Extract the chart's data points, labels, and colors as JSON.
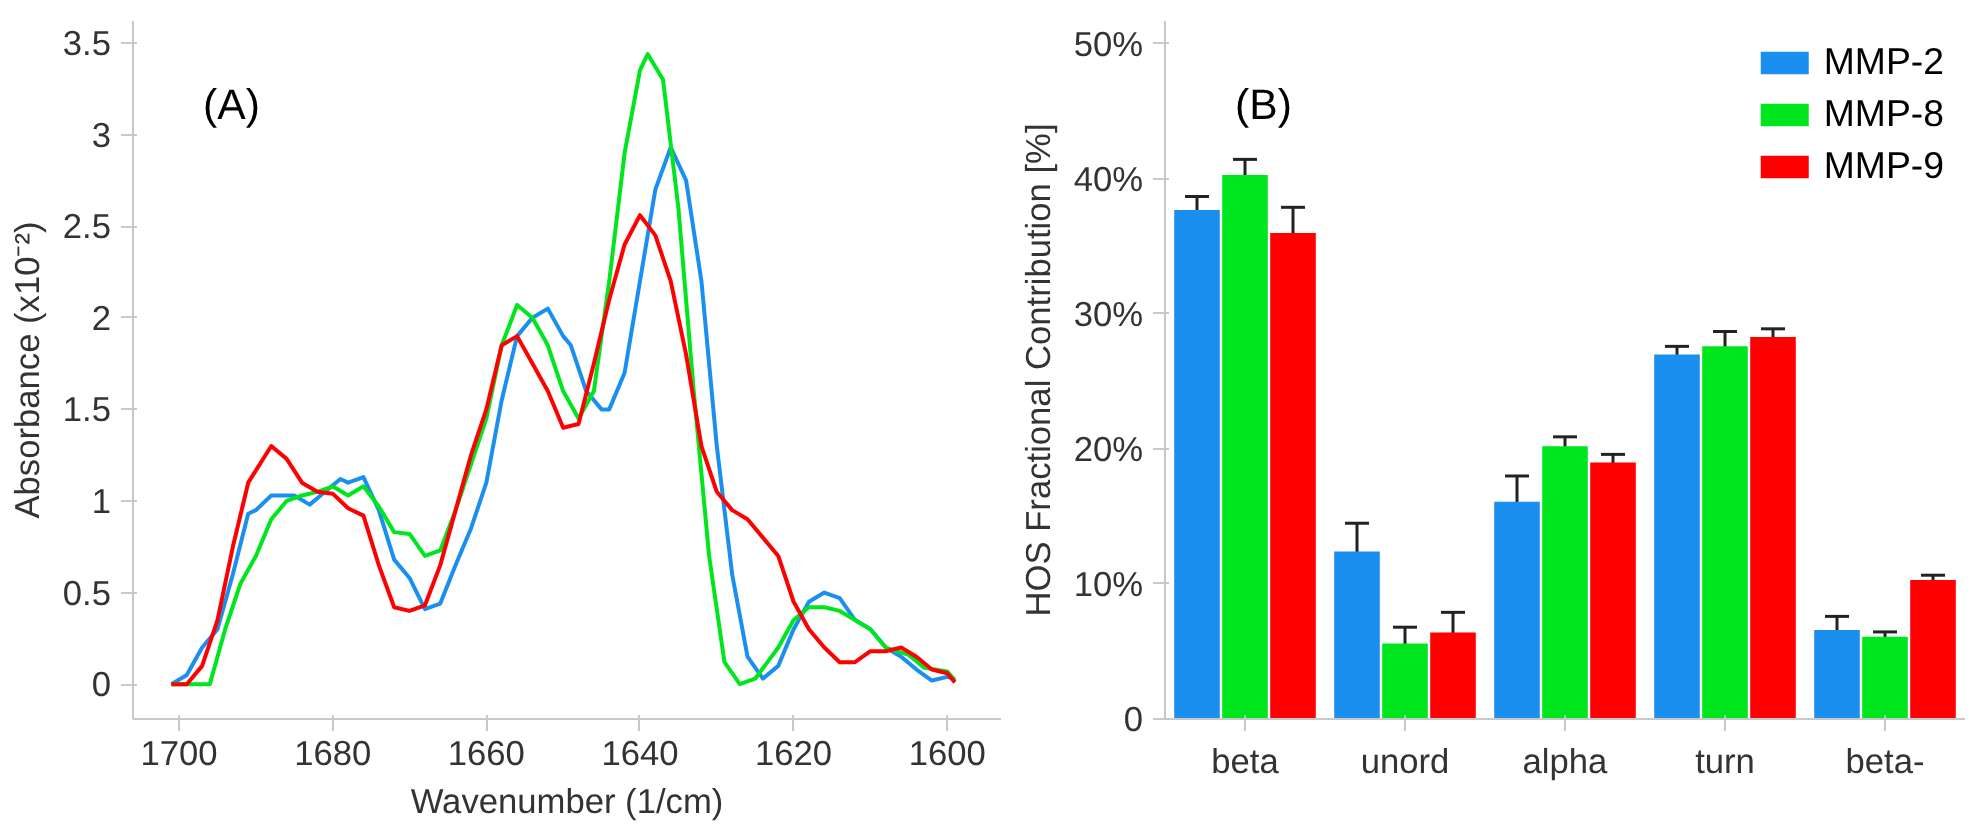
{
  "chart_data": [
    {
      "type": "line",
      "title": "(A)",
      "xlabel": "Wavenumber (1/cm)",
      "ylabel": "Absorbance (x10⁻²)",
      "xlim": [
        1706,
        1593
      ],
      "ylim": [
        -0.19,
        3.62
      ],
      "xticks": [
        1700,
        1680,
        1660,
        1640,
        1620,
        1600
      ],
      "yticks": [
        0,
        0.5,
        1,
        1.5,
        2,
        2.5,
        3,
        3.5
      ],
      "grid": false,
      "legend": false,
      "line_style": "solid",
      "series": [
        {
          "color": "#1b8fef",
          "x": [
            1701,
            1699,
            1697,
            1695,
            1693,
            1691,
            1690,
            1688,
            1685,
            1683,
            1681,
            1679,
            1678,
            1676,
            1674,
            1672,
            1670,
            1668,
            1666,
            1664,
            1662,
            1660,
            1658,
            1656,
            1654,
            1652,
            1650,
            1649,
            1647,
            1645,
            1644,
            1642,
            1640,
            1638,
            1636,
            1634,
            1632,
            1630,
            1628,
            1626,
            1624,
            1622,
            1620,
            1618,
            1616,
            1614,
            1612,
            1610,
            1608,
            1606,
            1604,
            1602,
            1600,
            1599
          ],
          "values": [
            0,
            0.05,
            0.2,
            0.3,
            0.6,
            0.93,
            0.95,
            1.03,
            1.03,
            0.98,
            1.05,
            1.12,
            1.1,
            1.13,
            0.95,
            0.68,
            0.58,
            0.41,
            0.44,
            0.65,
            0.85,
            1.1,
            1.55,
            1.9,
            2.0,
            2.05,
            1.9,
            1.85,
            1.6,
            1.5,
            1.5,
            1.7,
            2.2,
            2.7,
            2.93,
            2.75,
            2.2,
            1.3,
            0.6,
            0.15,
            0.03,
            0.1,
            0.3,
            0.45,
            0.5,
            0.47,
            0.35,
            0.3,
            0.2,
            0.15,
            0.08,
            0.02,
            0.04,
            0.03
          ]
        },
        {
          "color": "#00e61e",
          "x": [
            1701,
            1696,
            1694,
            1692,
            1690,
            1688,
            1686,
            1684,
            1682,
            1680,
            1678,
            1676,
            1674,
            1672,
            1670,
            1668,
            1666,
            1664,
            1662,
            1660,
            1658,
            1656,
            1654,
            1652,
            1650,
            1648,
            1646,
            1644,
            1642,
            1640,
            1639,
            1637,
            1635,
            1633,
            1631,
            1629,
            1627,
            1625,
            1622,
            1620,
            1618,
            1616,
            1614,
            1612,
            1610,
            1608,
            1605,
            1603,
            1600,
            1599
          ],
          "values": [
            0,
            0,
            0.3,
            0.55,
            0.7,
            0.9,
            1.0,
            1.03,
            1.05,
            1.08,
            1.03,
            1.08,
            0.97,
            0.83,
            0.82,
            0.7,
            0.73,
            0.95,
            1.2,
            1.45,
            1.85,
            2.07,
            2.0,
            1.85,
            1.6,
            1.45,
            1.6,
            2.2,
            2.9,
            3.35,
            3.44,
            3.3,
            2.6,
            1.6,
            0.7,
            0.12,
            0,
            0.03,
            0.2,
            0.35,
            0.42,
            0.42,
            0.4,
            0.35,
            0.3,
            0.2,
            0.16,
            0.09,
            0.07,
            0.02
          ]
        },
        {
          "color": "#ff0000",
          "x": [
            1701,
            1699,
            1697,
            1695,
            1693,
            1691,
            1688,
            1686,
            1684,
            1682,
            1680,
            1678,
            1676,
            1674,
            1672,
            1670,
            1668,
            1666,
            1664,
            1662,
            1660,
            1658,
            1656,
            1654,
            1652,
            1650,
            1648,
            1646,
            1644,
            1642,
            1640,
            1638,
            1636,
            1634,
            1632,
            1630,
            1628,
            1626,
            1624,
            1622,
            1620,
            1618,
            1616,
            1614,
            1612,
            1610,
            1608,
            1606,
            1604,
            1602,
            1600,
            1599
          ],
          "values": [
            0,
            0,
            0.1,
            0.35,
            0.75,
            1.1,
            1.3,
            1.23,
            1.1,
            1.05,
            1.04,
            0.96,
            0.92,
            0.65,
            0.42,
            0.4,
            0.43,
            0.65,
            0.95,
            1.25,
            1.5,
            1.85,
            1.9,
            1.75,
            1.6,
            1.4,
            1.42,
            1.75,
            2.1,
            2.4,
            2.56,
            2.45,
            2.2,
            1.8,
            1.3,
            1.05,
            0.95,
            0.9,
            0.8,
            0.7,
            0.45,
            0.3,
            0.2,
            0.12,
            0.12,
            0.18,
            0.18,
            0.2,
            0.15,
            0.08,
            0.06,
            0.01
          ]
        }
      ]
    },
    {
      "type": "bar",
      "title": "(B)",
      "ylabel": "HOS Fractional Contribution [%]",
      "categories": [
        "beta",
        "unord",
        "alpha",
        "turn",
        "beta-"
      ],
      "ylim": [
        0,
        51.7
      ],
      "yticks": [
        0,
        {
          "value": 10,
          "label": "10%"
        },
        {
          "value": 20,
          "label": "20%"
        },
        {
          "value": 30,
          "label": "30%"
        },
        {
          "value": 40,
          "label": "40%"
        },
        {
          "value": 50,
          "label": "50%"
        }
      ],
      "grid": false,
      "legend": "top right",
      "series": [
        {
          "name": "MMP-2",
          "color": "#1b8fef",
          "values": [
            37.7,
            12.4,
            16.1,
            27.0,
            6.6
          ],
          "errors": [
            1.0,
            2.1,
            1.9,
            0.6,
            1.0
          ]
        },
        {
          "name": "MMP-8",
          "color": "#00e61e",
          "values": [
            40.3,
            5.6,
            20.2,
            27.6,
            6.1
          ],
          "errors": [
            1.15,
            1.2,
            0.7,
            1.1,
            0.35
          ]
        },
        {
          "name": "MMP-9",
          "color": "#ff0000",
          "values": [
            36.0,
            6.4,
            19.0,
            28.3,
            10.3
          ],
          "errors": [
            1.9,
            1.5,
            0.6,
            0.6,
            0.35
          ]
        }
      ]
    }
  ]
}
